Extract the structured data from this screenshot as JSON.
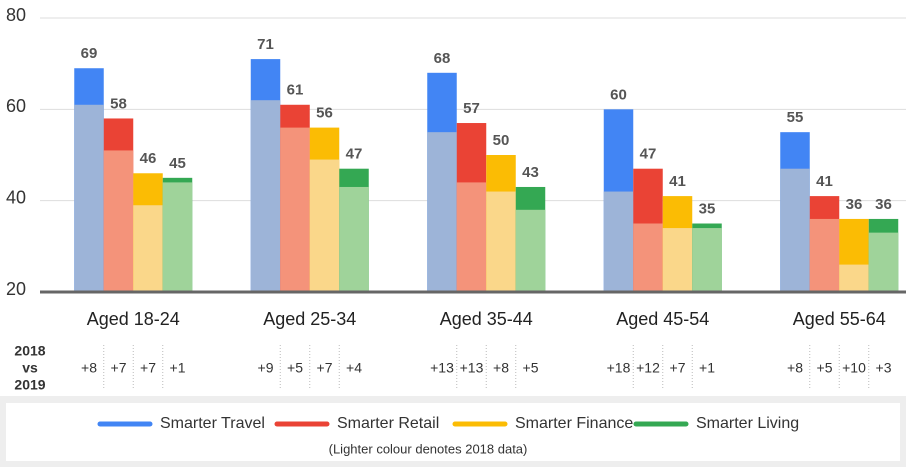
{
  "chart_data": {
    "type": "bar",
    "categories": [
      "Aged 18-24",
      "Aged 25-34",
      "Aged 35-44",
      "Aged 45-54",
      "Aged 55-64"
    ],
    "series": [
      {
        "name": "Smarter Travel",
        "color": "#4285f4",
        "color_2018": "#9db4d8",
        "values": [
          69,
          71,
          68,
          60,
          55
        ],
        "values_2018": [
          61,
          62,
          55,
          42,
          47
        ],
        "changes": [
          8,
          9,
          13,
          18,
          8
        ],
        "change_labels": [
          "+8",
          "+9",
          "+13",
          "+18",
          "+8"
        ]
      },
      {
        "name": "Smarter Retail",
        "color": "#ea4335",
        "color_2018": "#f4937a",
        "values": [
          58,
          61,
          57,
          47,
          41
        ],
        "values_2018": [
          51,
          56,
          44,
          35,
          36
        ],
        "changes": [
          7,
          5,
          13,
          12,
          5
        ],
        "change_labels": [
          "+7",
          "+5",
          "+13",
          "+12",
          "+5"
        ]
      },
      {
        "name": "Smarter Finance",
        "color": "#fbbc04",
        "color_2018": "#fad78a",
        "values": [
          46,
          56,
          50,
          41,
          36
        ],
        "values_2018": [
          39,
          49,
          42,
          34,
          26
        ],
        "changes": [
          7,
          7,
          8,
          7,
          10
        ],
        "change_labels": [
          "+7",
          "+7",
          "+8",
          "+7",
          "+10"
        ]
      },
      {
        "name": "Smarter Living",
        "color": "#34a853",
        "color_2018": "#9fd39a",
        "values": [
          45,
          47,
          43,
          35,
          36
        ],
        "values_2018": [
          44,
          43,
          38,
          34,
          33
        ],
        "changes": [
          1,
          4,
          5,
          1,
          3
        ],
        "change_labels": [
          "+1",
          "+4",
          "+5",
          "+1",
          "+3"
        ]
      }
    ],
    "change_title": [
      "2018",
      "vs",
      "2019"
    ],
    "note": "(Lighter colour denotes 2018 data)",
    "ylim": [
      20,
      80
    ],
    "yticks": [
      20,
      40,
      60,
      80
    ],
    "grid": true
  }
}
